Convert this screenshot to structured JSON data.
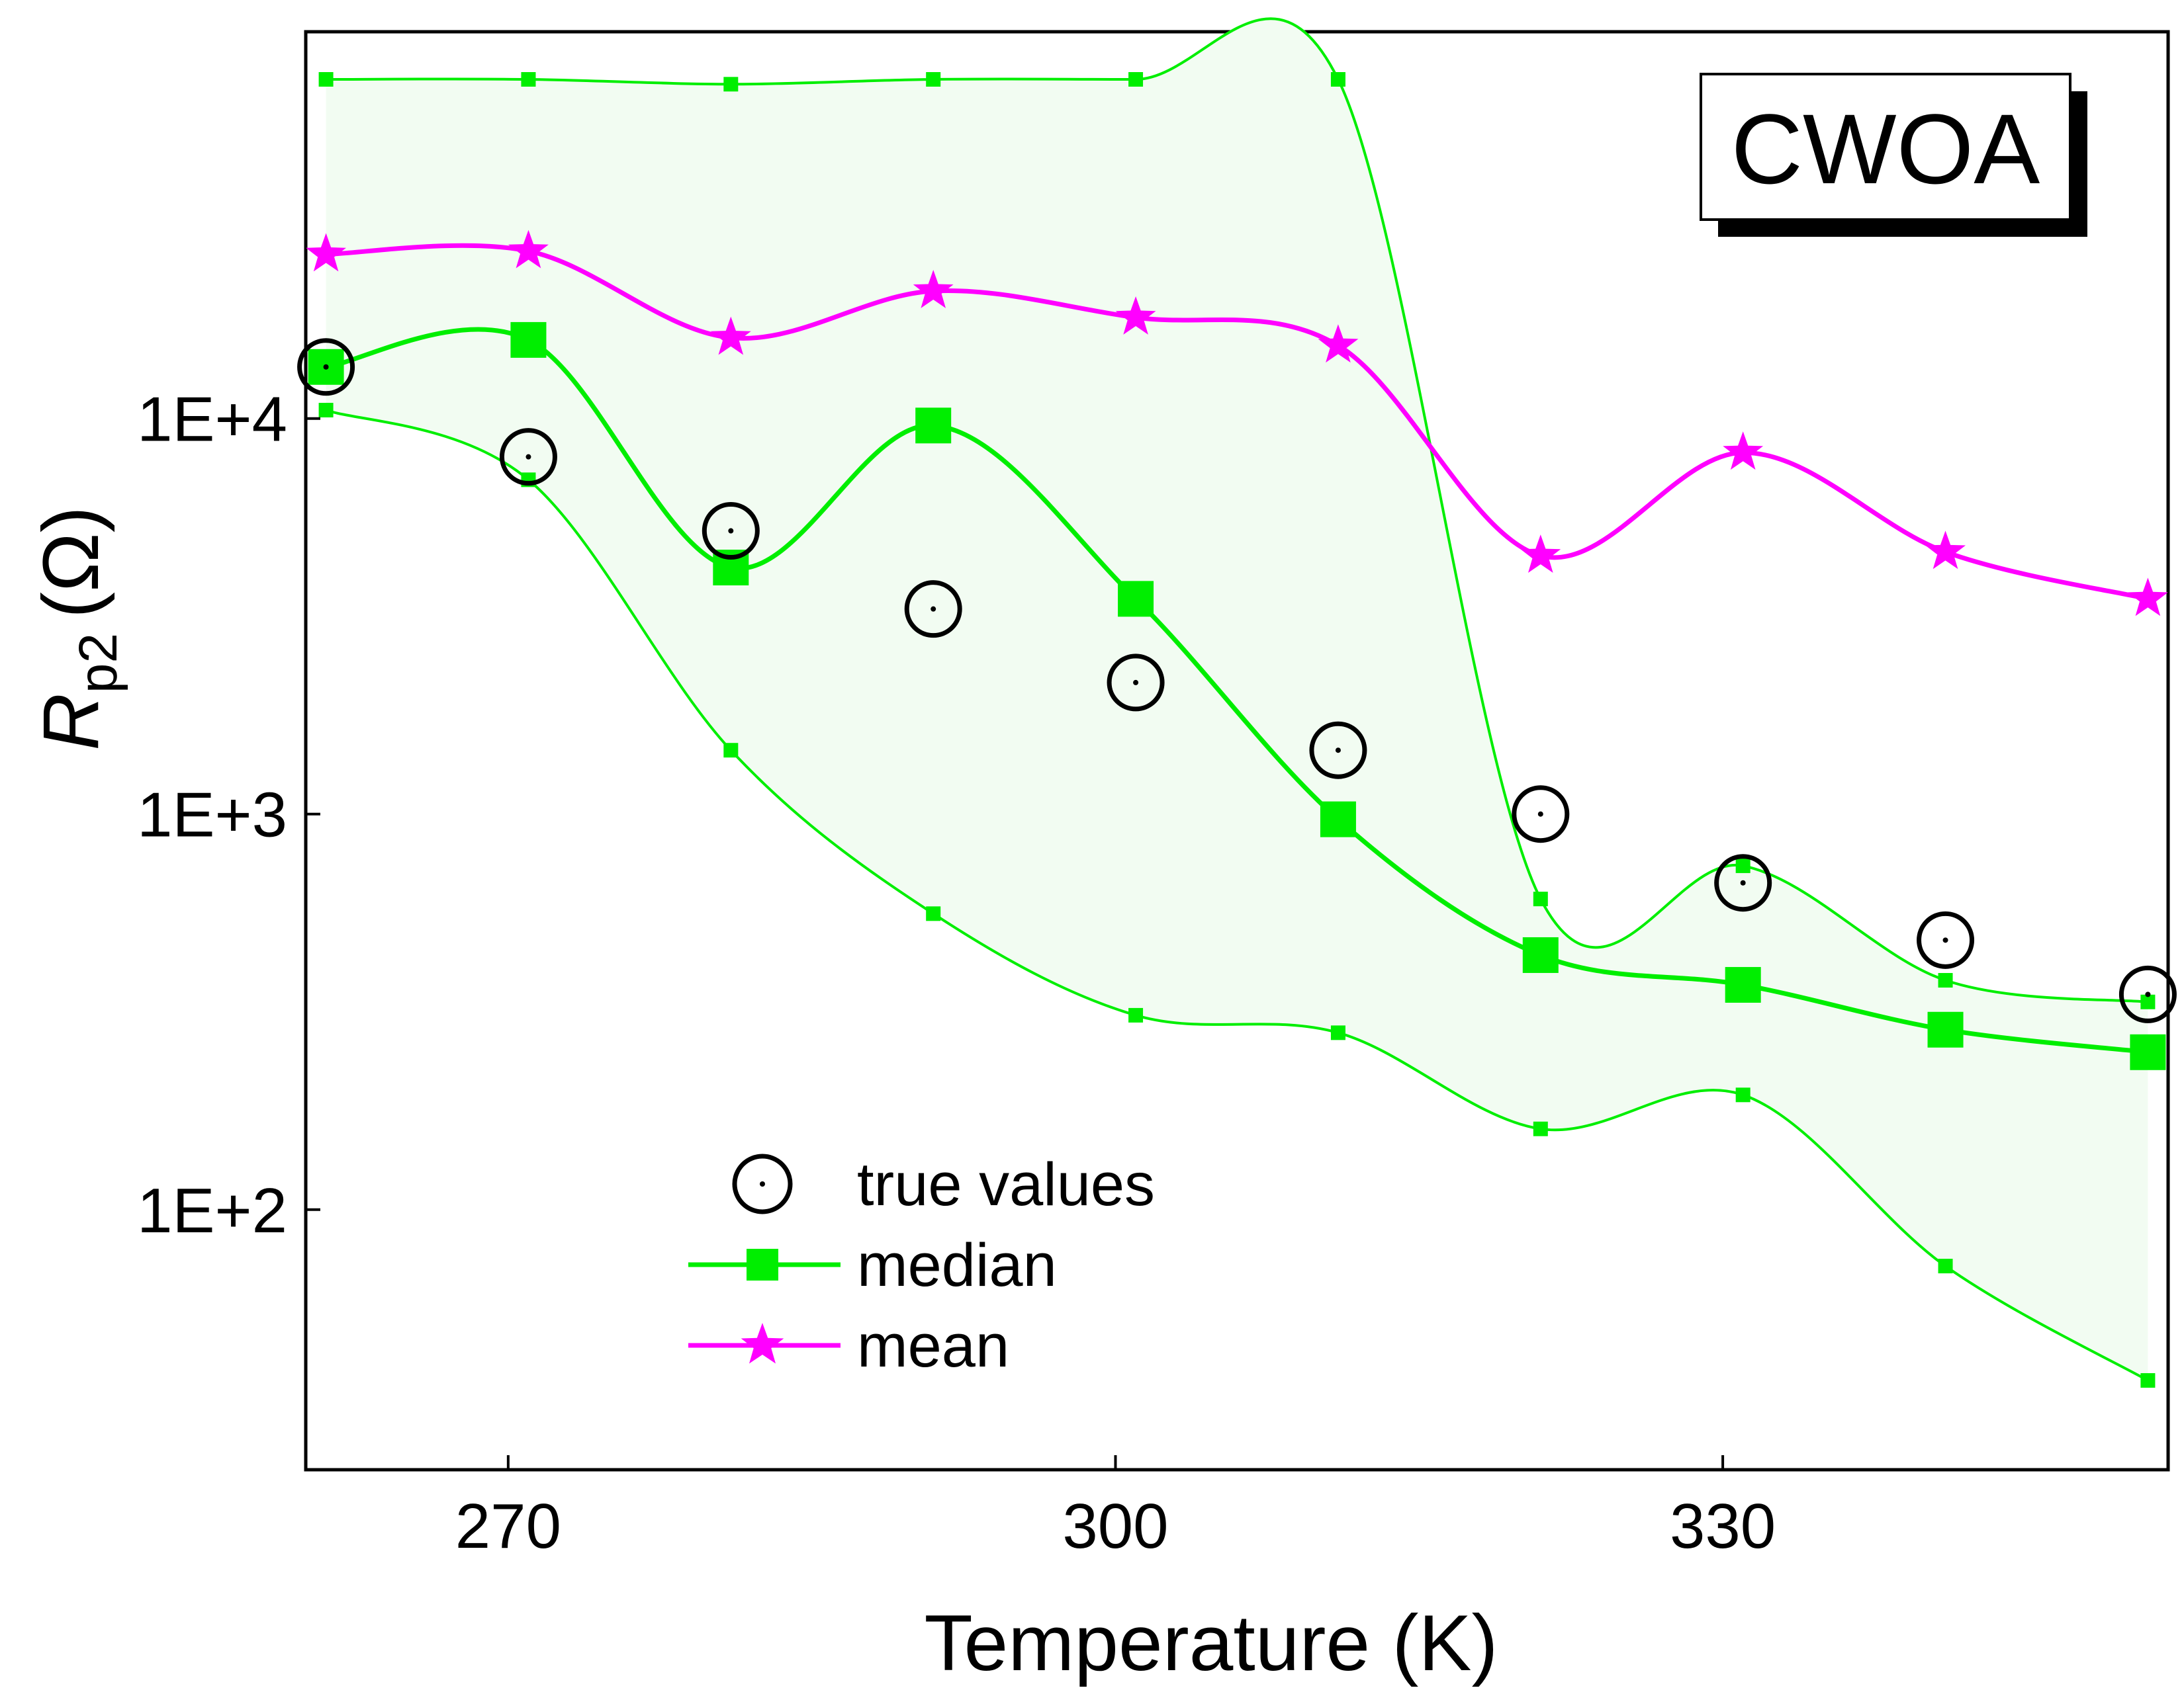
{
  "chart_data": {
    "type": "line",
    "x": [
      261,
      271,
      281,
      291,
      301,
      311,
      321,
      331,
      341,
      351
    ],
    "xlabel": "Temperature (K)",
    "ylabel_main": "R",
    "ylabel_sub": "p2",
    "ylabel_unit": "(Ω)",
    "xlim": [
      260,
      352
    ],
    "ylim": [
      22,
      95000
    ],
    "yscale": "log",
    "xticks": [
      270,
      300,
      330
    ],
    "xtick_labels": [
      "270",
      "300",
      "330"
    ],
    "yticks": [
      100,
      1000,
      10000
    ],
    "ytick_labels": [
      "1E+2",
      "1E+3",
      "1E+4"
    ],
    "band": {
      "upper": [
        72000,
        72000,
        70000,
        72000,
        72000,
        72000,
        610,
        740,
        380,
        335
      ],
      "lower": [
        10500,
        7000,
        1450,
        560,
        310,
        280,
        160,
        195,
        72,
        37
      ]
    },
    "series": [
      {
        "name": "true values",
        "values": [
          13500,
          8000,
          5200,
          3300,
          2150,
          1450,
          1000,
          670,
          480,
          350
        ]
      },
      {
        "name": "median",
        "values": [
          13500,
          15800,
          4200,
          9600,
          3500,
          970,
          440,
          370,
          285,
          250
        ]
      },
      {
        "name": "mean",
        "values": [
          26000,
          26500,
          16000,
          21000,
          18000,
          15300,
          4500,
          8200,
          4600,
          3500
        ]
      }
    ],
    "legend": [
      "true values",
      "median",
      "mean"
    ],
    "legend_position": "bottom-center",
    "annotation": "CWOA",
    "colors": {
      "median": "#00ee00",
      "band_line": "#00ee00",
      "band_fill": "#f2fcf2",
      "mean": "#ff00ff",
      "true": "#000000"
    }
  }
}
